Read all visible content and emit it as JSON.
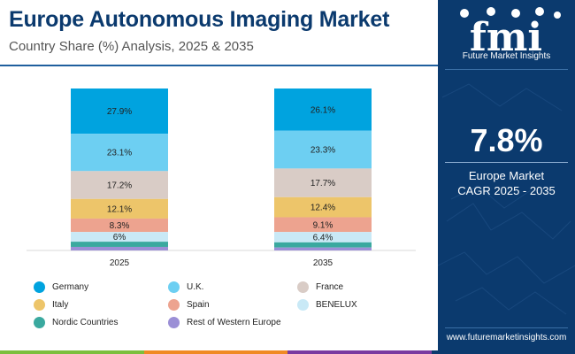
{
  "header": {
    "title": "Europe Autonomous Imaging Market",
    "subtitle": "Country Share (%) Analysis, 2025 & 2035"
  },
  "chart_data": {
    "type": "bar",
    "stacked": true,
    "categories": [
      "2025",
      "2035"
    ],
    "ylim": [
      0,
      100
    ],
    "grid": false,
    "legend_position": "bottom",
    "series": [
      {
        "name": "Germany",
        "values": [
          27.9,
          26.1
        ],
        "labels": [
          "27.9%",
          "26.1%"
        ],
        "color": "#00a3df"
      },
      {
        "name": "U.K.",
        "values": [
          23.1,
          23.3
        ],
        "labels": [
          "23.1%",
          "23.3%"
        ],
        "color": "#6dcff2"
      },
      {
        "name": "France",
        "values": [
          17.2,
          17.7
        ],
        "labels": [
          "17.2%",
          "17.7%"
        ],
        "color": "#d9ccc6"
      },
      {
        "name": "Italy",
        "values": [
          12.1,
          12.4
        ],
        "labels": [
          "12.1%",
          "12.4%"
        ],
        "color": "#edc56a"
      },
      {
        "name": "Spain",
        "values": [
          8.3,
          9.1
        ],
        "labels": [
          "8.3%",
          "9.1%"
        ],
        "color": "#eda38f"
      },
      {
        "name": "BENELUX",
        "values": [
          6.0,
          6.4
        ],
        "labels": [
          "6%",
          "6.4%"
        ],
        "color": "#c9e9f6"
      },
      {
        "name": "Nordic Countries",
        "values": [
          3.2,
          3.2
        ],
        "labels": [
          null,
          null
        ],
        "color": "#3aa99f"
      },
      {
        "name": "Rest of Western Europe",
        "values": [
          2.2,
          1.8
        ],
        "labels": [
          null,
          null
        ],
        "color": "#9b8fd6"
      }
    ]
  },
  "side_panel": {
    "logo_text": "fmi",
    "logo_caption": "Future Market Insights",
    "cagr_value": "7.8%",
    "cagr_line1": "Europe Market",
    "cagr_line2": "CAGR 2025 - 2035",
    "url": "www.futuremarketinsights.com",
    "background_color": "#0b3a6e"
  },
  "footer_colors": [
    "#7bbf3e",
    "#f08a24",
    "#7a3aa0",
    "#0b3a6e"
  ]
}
